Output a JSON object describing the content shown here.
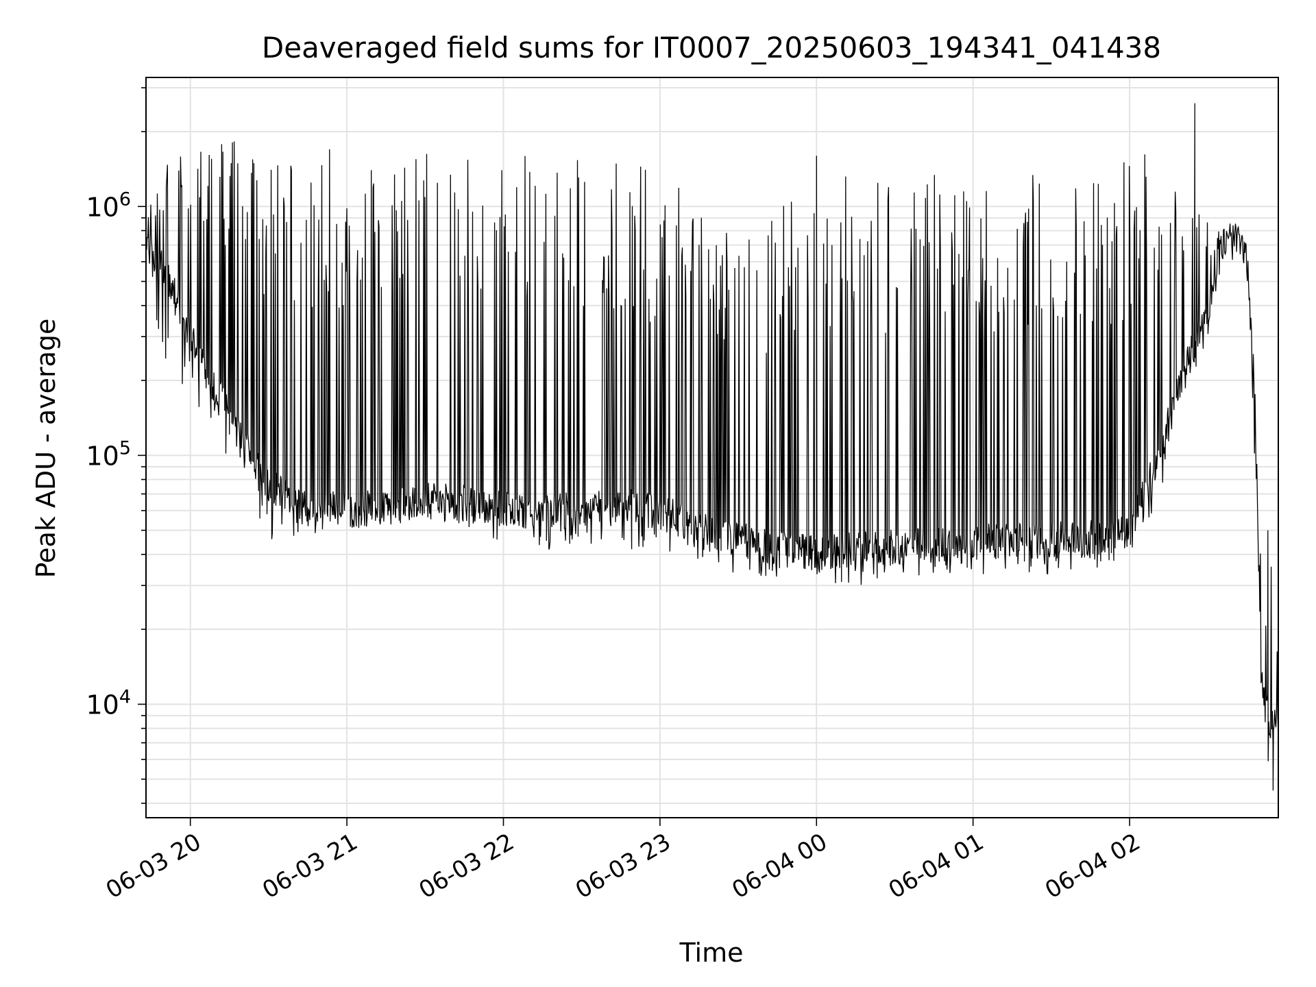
{
  "chart_data": {
    "type": "line",
    "title": "Deaveraged field sums for IT0007_20250603_194341_041438",
    "xlabel": "Time",
    "ylabel": "Peak ADU - average",
    "yscale": "log",
    "xlim": [
      "2025-06-03 19:43",
      "2025-06-04 02:57"
    ],
    "ylim": [
      3500,
      3300000
    ],
    "grid": true,
    "line_color": "#000000",
    "x_ticks": [
      {
        "t": "2025-06-03 20:00",
        "label": "06-03 20"
      },
      {
        "t": "2025-06-03 21:00",
        "label": "06-03 21"
      },
      {
        "t": "2025-06-03 22:00",
        "label": "06-03 22"
      },
      {
        "t": "2025-06-03 23:00",
        "label": "06-03 23"
      },
      {
        "t": "2025-06-04 00:00",
        "label": "06-04 00"
      },
      {
        "t": "2025-06-04 01:00",
        "label": "06-04 01"
      },
      {
        "t": "2025-06-04 02:00",
        "label": "06-04 02"
      }
    ],
    "y_ticks": [
      {
        "value": 10000,
        "base": "10",
        "exp": "4"
      },
      {
        "value": 100000,
        "base": "10",
        "exp": "5"
      },
      {
        "value": 1000000,
        "base": "10",
        "exp": "6"
      }
    ],
    "series": [
      {
        "envelope": {
          "t": [
            "2025-06-03 19:43",
            "2025-06-03 19:50",
            "2025-06-03 20:00",
            "2025-06-03 20:10",
            "2025-06-03 20:20",
            "2025-06-03 20:30",
            "2025-06-03 20:45",
            "2025-06-03 21:00",
            "2025-06-03 21:15",
            "2025-06-03 21:30",
            "2025-06-03 21:45",
            "2025-06-03 22:00",
            "2025-06-03 22:15",
            "2025-06-03 22:30",
            "2025-06-03 22:45",
            "2025-06-03 23:00",
            "2025-06-03 23:15",
            "2025-06-03 23:30",
            "2025-06-03 23:45",
            "2025-06-04 00:00",
            "2025-06-04 00:15",
            "2025-06-04 00:30",
            "2025-06-04 00:45",
            "2025-06-04 01:00",
            "2025-06-04 01:15",
            "2025-06-04 01:30",
            "2025-06-04 01:45",
            "2025-06-04 02:00",
            "2025-06-04 02:10",
            "2025-06-04 02:20",
            "2025-06-04 02:30",
            "2025-06-04 02:35",
            "2025-06-04 02:40",
            "2025-06-04 02:45",
            "2025-06-04 02:48",
            "2025-06-04 02:51",
            "2025-06-04 02:54",
            "2025-06-04 02:57"
          ],
          "base": [
            700000,
            550000,
            300000,
            180000,
            110000,
            75000,
            62000,
            60000,
            62000,
            65000,
            64000,
            60000,
            58000,
            60000,
            62000,
            58000,
            52000,
            45000,
            42000,
            40000,
            41000,
            42000,
            43000,
            44000,
            45000,
            45000,
            46000,
            50000,
            90000,
            200000,
            380000,
            650000,
            720000,
            600000,
            150000,
            12000,
            8000,
            8000
          ],
          "low": [
            500000,
            250000,
            150000,
            110000,
            80000,
            45000,
            48000,
            50000,
            52000,
            55000,
            50000,
            45000,
            40000,
            45000,
            40000,
            42000,
            38000,
            33000,
            32000,
            31000,
            30000,
            31000,
            32000,
            33000,
            34000,
            33000,
            34000,
            40000,
            60000,
            150000,
            300000,
            600000,
            680000,
            550000,
            90000,
            7000,
            4500,
            7000
          ],
          "spike": [
            900000,
            1500000,
            1900000,
            2000000,
            2100000,
            1700000,
            1700000,
            1700000,
            1700000,
            1700000,
            1700000,
            1600000,
            1600000,
            1600000,
            1500000,
            1400000,
            1100000,
            800000,
            1000000,
            1300000,
            1400000,
            1400000,
            1400000,
            1400000,
            1400000,
            1400000,
            1400000,
            1800000,
            1900000,
            1600000,
            900000,
            800000,
            900000,
            700000,
            200000,
            30000,
            45000,
            15000
          ]
        },
        "notable_peaks": [
          {
            "t": "2025-06-04 02:25",
            "value": 2600000
          },
          {
            "t": "2025-06-04 00:00",
            "value": 1600000
          },
          {
            "t": "2025-06-04 02:53",
            "value": 50000
          },
          {
            "t": "2025-06-04 02:55",
            "value": 4500
          }
        ]
      }
    ]
  }
}
